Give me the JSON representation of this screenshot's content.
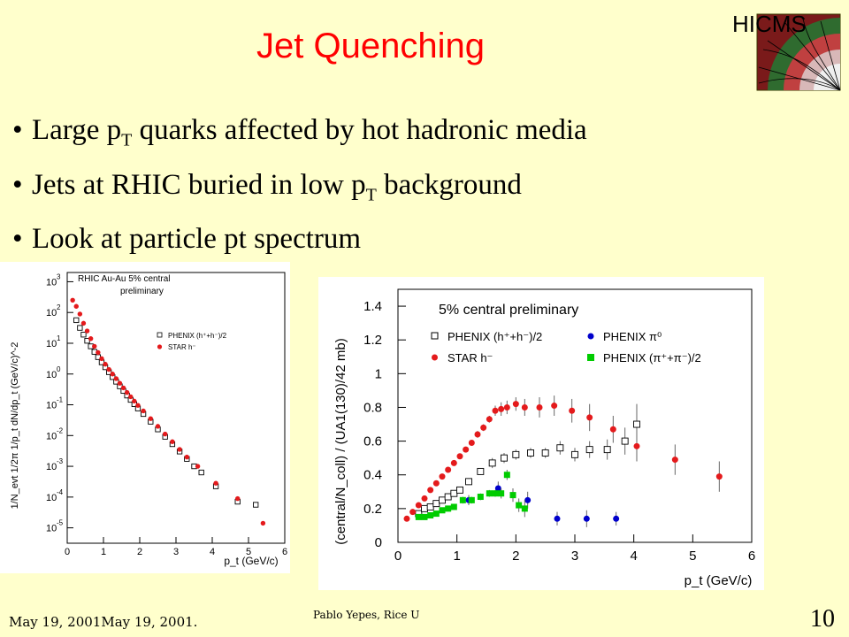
{
  "slide": {
    "title": "Jet Quenching",
    "bullets": [
      {
        "parts": [
          "Large p",
          "T",
          " quarks affected by hot hadronic media"
        ]
      },
      {
        "parts": [
          "Jets at RHIC buried in low p",
          "T",
          " background"
        ]
      },
      {
        "parts": [
          "Look at particle pt spectrum",
          "",
          ""
        ]
      }
    ],
    "logo_text": "HICMS",
    "footer_date": "May 19, 2001May 19, 2001.",
    "footer_author": "Pablo Yepes, Rice U",
    "slide_number": "10"
  },
  "chart_data": [
    {
      "type": "scatter",
      "title": "RHIC Au-Au 5% central",
      "subtitle": "preliminary",
      "xlabel": "p_t (GeV/c)",
      "ylabel": "1/N_evt 1/2π 1/p_t dN/dp_t (GeV/c)^-2",
      "xlim": [
        0,
        6
      ],
      "ylim_log10": [
        -5.5,
        3.3
      ],
      "log_y": true,
      "x_ticks": [
        0,
        1,
        2,
        3,
        4,
        5,
        6
      ],
      "y_ticks": [
        3,
        2,
        1,
        0,
        -1,
        -2,
        -3,
        -4,
        -5
      ],
      "y_tick_base": "10",
      "legend_position": "center-right",
      "series": [
        {
          "name": "PHENIX (h⁺+h⁻)/2",
          "marker": "open-square",
          "color": "#000000",
          "points": [
            [
              0.25,
              1.75
            ],
            [
              0.35,
              1.5
            ],
            [
              0.45,
              1.28
            ],
            [
              0.55,
              1.08
            ],
            [
              0.65,
              0.9
            ],
            [
              0.75,
              0.72
            ],
            [
              0.85,
              0.55
            ],
            [
              0.95,
              0.38
            ],
            [
              1.05,
              0.22
            ],
            [
              1.15,
              0.06
            ],
            [
              1.25,
              -0.1
            ],
            [
              1.35,
              -0.25
            ],
            [
              1.45,
              -0.4
            ],
            [
              1.55,
              -0.55
            ],
            [
              1.65,
              -0.7
            ],
            [
              1.75,
              -0.84
            ],
            [
              1.85,
              -0.98
            ],
            [
              1.95,
              -1.12
            ],
            [
              2.1,
              -1.3
            ],
            [
              2.3,
              -1.55
            ],
            [
              2.5,
              -1.8
            ],
            [
              2.7,
              -2.04
            ],
            [
              2.9,
              -2.28
            ],
            [
              3.1,
              -2.52
            ],
            [
              3.3,
              -2.76
            ],
            [
              3.5,
              -3.0
            ],
            [
              3.7,
              -3.2
            ],
            [
              4.1,
              -3.65
            ],
            [
              4.7,
              -4.15
            ],
            [
              5.2,
              -4.25
            ]
          ]
        },
        {
          "name": "STAR h⁻",
          "marker": "filled-circle",
          "color": "#e41a1c",
          "points": [
            [
              0.15,
              2.4
            ],
            [
              0.25,
              2.2
            ],
            [
              0.35,
              1.95
            ],
            [
              0.45,
              1.65
            ],
            [
              0.55,
              1.4
            ],
            [
              0.65,
              1.15
            ],
            [
              0.75,
              0.9
            ],
            [
              0.85,
              0.7
            ],
            [
              0.95,
              0.5
            ],
            [
              1.05,
              0.32
            ],
            [
              1.15,
              0.15
            ],
            [
              1.25,
              0.0
            ],
            [
              1.35,
              -0.15
            ],
            [
              1.45,
              -0.3
            ],
            [
              1.55,
              -0.45
            ],
            [
              1.65,
              -0.6
            ],
            [
              1.75,
              -0.74
            ],
            [
              1.85,
              -0.88
            ],
            [
              1.95,
              -1.02
            ],
            [
              2.1,
              -1.2
            ],
            [
              2.3,
              -1.45
            ],
            [
              2.5,
              -1.7
            ],
            [
              2.7,
              -1.95
            ],
            [
              2.9,
              -2.2
            ],
            [
              3.1,
              -2.45
            ],
            [
              3.3,
              -2.7
            ],
            [
              3.6,
              -3.0
            ],
            [
              4.1,
              -3.55
            ],
            [
              4.7,
              -4.05
            ],
            [
              5.4,
              -4.85
            ]
          ]
        }
      ]
    },
    {
      "type": "scatter",
      "title": "5% central   preliminary",
      "xlabel": "p_t (GeV/c)",
      "ylabel": "(central/N_coll) / (UA1(130)/42 mb)",
      "xlim": [
        0,
        6
      ],
      "ylim": [
        0,
        1.5
      ],
      "x_ticks": [
        0,
        1,
        2,
        3,
        4,
        5,
        6
      ],
      "y_ticks": [
        0,
        0.2,
        0.4,
        0.6,
        0.8,
        1,
        1.2,
        1.4
      ],
      "legend_position": "top",
      "series": [
        {
          "name": "PHENIX (h⁺+h⁻)/2",
          "marker": "open-square",
          "color": "#000000",
          "points": [
            [
              0.35,
              0.17,
              0.01
            ],
            [
              0.45,
              0.2,
              0.01
            ],
            [
              0.55,
              0.21,
              0.01
            ],
            [
              0.65,
              0.23,
              0.01
            ],
            [
              0.75,
              0.25,
              0.01
            ],
            [
              0.85,
              0.27,
              0.01
            ],
            [
              0.95,
              0.29,
              0.01
            ],
            [
              1.05,
              0.31,
              0.01
            ],
            [
              1.2,
              0.36,
              0.02
            ],
            [
              1.4,
              0.42,
              0.02
            ],
            [
              1.6,
              0.47,
              0.03
            ],
            [
              1.8,
              0.5,
              0.03
            ],
            [
              2.0,
              0.52,
              0.03
            ],
            [
              2.25,
              0.53,
              0.03
            ],
            [
              2.5,
              0.53,
              0.03
            ],
            [
              2.75,
              0.56,
              0.04
            ],
            [
              3.0,
              0.52,
              0.04
            ],
            [
              3.25,
              0.55,
              0.05
            ],
            [
              3.55,
              0.55,
              0.06
            ],
            [
              3.85,
              0.6,
              0.08
            ],
            [
              4.05,
              0.7,
              0.12
            ]
          ]
        },
        {
          "name": "STAR h⁻",
          "marker": "filled-circle",
          "color": "#e41a1c",
          "points": [
            [
              0.15,
              0.14,
              0.01
            ],
            [
              0.25,
              0.18,
              0.01
            ],
            [
              0.35,
              0.22,
              0.01
            ],
            [
              0.45,
              0.26,
              0.01
            ],
            [
              0.55,
              0.31,
              0.01
            ],
            [
              0.65,
              0.35,
              0.01
            ],
            [
              0.75,
              0.39,
              0.01
            ],
            [
              0.85,
              0.43,
              0.01
            ],
            [
              0.95,
              0.47,
              0.01
            ],
            [
              1.05,
              0.51,
              0.01
            ],
            [
              1.15,
              0.55,
              0.01
            ],
            [
              1.25,
              0.59,
              0.01
            ],
            [
              1.35,
              0.64,
              0.02
            ],
            [
              1.45,
              0.68,
              0.02
            ],
            [
              1.55,
              0.73,
              0.02
            ],
            [
              1.65,
              0.78,
              0.03
            ],
            [
              1.75,
              0.79,
              0.04
            ],
            [
              1.85,
              0.8,
              0.04
            ],
            [
              2.0,
              0.82,
              0.04
            ],
            [
              2.15,
              0.8,
              0.05
            ],
            [
              2.4,
              0.8,
              0.06
            ],
            [
              2.65,
              0.81,
              0.06
            ],
            [
              2.95,
              0.78,
              0.07
            ],
            [
              3.25,
              0.74,
              0.08
            ],
            [
              3.65,
              0.67,
              0.08
            ],
            [
              4.05,
              0.57,
              0.09
            ],
            [
              4.7,
              0.49,
              0.09
            ],
            [
              5.45,
              0.39,
              0.09
            ]
          ]
        },
        {
          "name": "PHENIX π⁰",
          "marker": "filled-circle",
          "color": "#0000cc",
          "points": [
            [
              1.2,
              0.25,
              0.03
            ],
            [
              1.7,
              0.32,
              0.04
            ],
            [
              2.2,
              0.25,
              0.05
            ],
            [
              2.7,
              0.14,
              0.04
            ],
            [
              3.2,
              0.14,
              0.05
            ],
            [
              3.7,
              0.14,
              0.04
            ]
          ]
        },
        {
          "name": "PHENIX (π⁺+π⁻)/2",
          "marker": "filled-square",
          "color": "#00cc00",
          "points": [
            [
              0.35,
              0.15,
              0.01
            ],
            [
              0.45,
              0.15,
              0.01
            ],
            [
              0.55,
              0.16,
              0.01
            ],
            [
              0.65,
              0.17,
              0.01
            ],
            [
              0.75,
              0.19,
              0.01
            ],
            [
              0.85,
              0.2,
              0.01
            ],
            [
              0.95,
              0.21,
              0.01
            ],
            [
              1.1,
              0.25,
              0.02
            ],
            [
              1.25,
              0.25,
              0.02
            ],
            [
              1.4,
              0.27,
              0.02
            ],
            [
              1.55,
              0.29,
              0.02
            ],
            [
              1.65,
              0.29,
              0.02
            ],
            [
              1.75,
              0.29,
              0.03
            ],
            [
              1.85,
              0.4,
              0.03
            ],
            [
              1.95,
              0.28,
              0.04
            ],
            [
              2.05,
              0.22,
              0.04
            ],
            [
              2.15,
              0.2,
              0.05
            ]
          ]
        }
      ]
    }
  ]
}
